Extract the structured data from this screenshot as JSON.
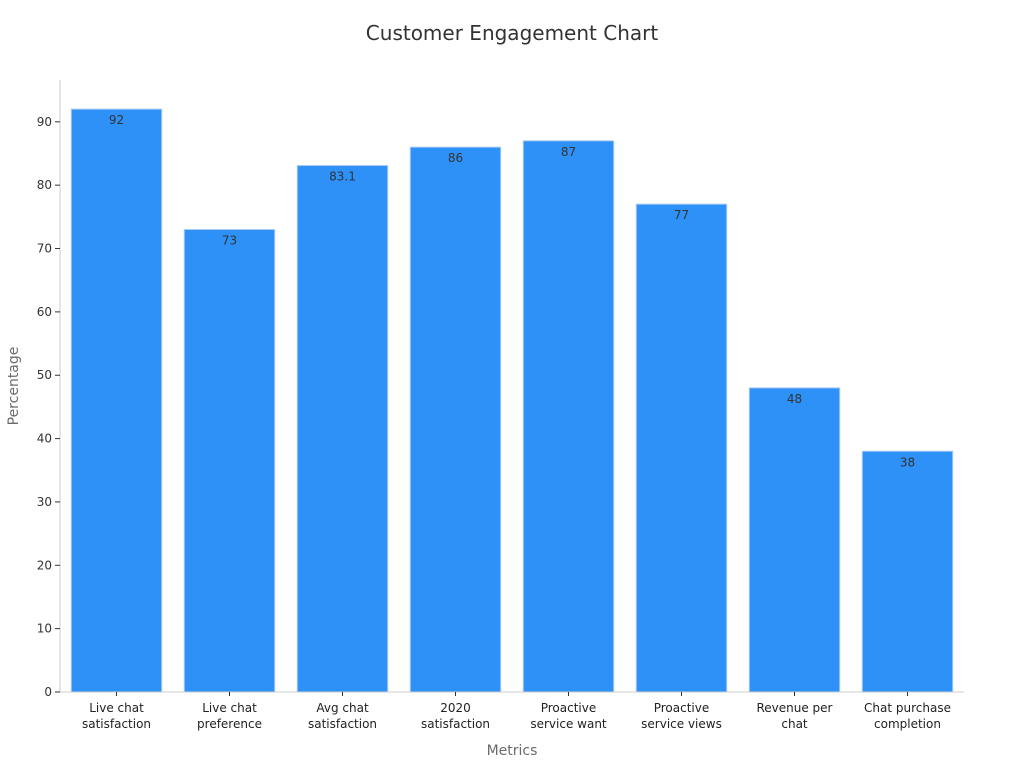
{
  "chart_data": {
    "type": "bar",
    "title": "Customer Engagement Chart",
    "xlabel": "Metrics",
    "ylabel": "Percentage",
    "categories": [
      [
        "Live chat",
        "satisfaction"
      ],
      [
        "Live chat",
        "preference"
      ],
      [
        "Avg chat",
        "satisfaction"
      ],
      [
        "2020",
        "satisfaction"
      ],
      [
        "Proactive",
        "service want"
      ],
      [
        "Proactive",
        "service views"
      ],
      [
        "Revenue per",
        "chat"
      ],
      [
        "Chat purchase",
        "completion"
      ]
    ],
    "values": [
      92,
      73,
      83.1,
      86,
      87,
      77,
      48,
      38
    ],
    "data_labels": [
      "92",
      "73",
      "83.1",
      "86",
      "87",
      "77",
      "48",
      "38"
    ],
    "yticks": [
      0,
      10,
      20,
      30,
      40,
      50,
      60,
      70,
      80,
      90
    ],
    "ylim": [
      0,
      96.6
    ],
    "grid": false,
    "legend": "none",
    "bar_color": "#2e91f8",
    "bar_edge_color": "#a9c9f0"
  }
}
